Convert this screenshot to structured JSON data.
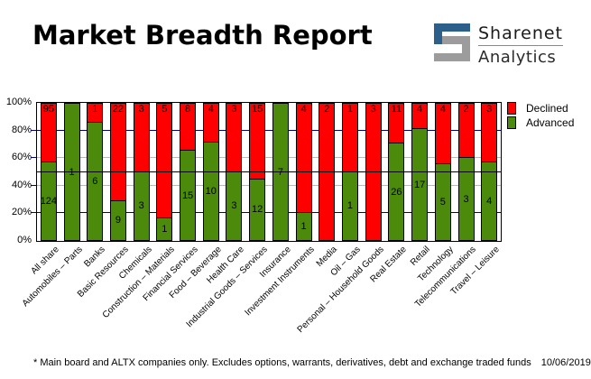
{
  "title": "Market Breadth Report",
  "logo": {
    "line1": "Sharenet",
    "line2": "Analytics"
  },
  "colors": {
    "declined": "#ff0000",
    "advanced": "#4b8a0b",
    "grid_major": "#000080",
    "grid_minor": "#b8b8b8",
    "reference_line": "#000000",
    "logo_blue": "#2d5f8b",
    "logo_gray": "#9c9c9c"
  },
  "chart_data": {
    "type": "bar",
    "stacked": true,
    "percent_stacked": true,
    "title": "Market Breadth Report",
    "xlabel": "",
    "ylabel": "",
    "ylim": [
      0,
      100
    ],
    "legend_position": "top-right-outside",
    "reference_line_percent": 50,
    "categories": [
      "All share",
      "Automobiles – Parts",
      "Banks",
      "Basic Resources",
      "Chemicals",
      "Construction – Materials",
      "Financial Services",
      "Food – Beverage",
      "Health Care",
      "Industrial Goods – Services",
      "Insurance",
      "Investment Instruments",
      "Media",
      "Oil – Gas",
      "Personal – Household Goods",
      "Real Estate",
      "Retail",
      "Technology",
      "Telecommunications",
      "Travel – Leisure"
    ],
    "series": [
      {
        "name": "Declined",
        "color": "#ff0000",
        "values": [
          95,
          0,
          1,
          22,
          3,
          5,
          8,
          4,
          3,
          15,
          0,
          4,
          2,
          1,
          3,
          11,
          4,
          4,
          2,
          3
        ]
      },
      {
        "name": "Advanced",
        "color": "#4b8a0b",
        "values": [
          124,
          1,
          6,
          9,
          3,
          1,
          15,
          10,
          3,
          12,
          7,
          1,
          0,
          1,
          0,
          26,
          17,
          5,
          3,
          4
        ]
      }
    ],
    "y_ticks": [
      {
        "label": "100%",
        "percent": 100
      },
      {
        "label": "80%",
        "percent": 80
      },
      {
        "label": "60%",
        "percent": 60
      },
      {
        "label": "40%",
        "percent": 40
      },
      {
        "label": "20%",
        "percent": 20
      },
      {
        "label": "0%",
        "percent": 0
      }
    ],
    "gridlines": [
      {
        "percent": 80,
        "color": "#000080"
      },
      {
        "percent": 60,
        "color": "#b8b8b8"
      },
      {
        "percent": 40,
        "color": "#b8b8b8"
      },
      {
        "percent": 20,
        "color": "#000080"
      }
    ]
  },
  "footer": {
    "note": "* Main board and ALTX companies only. Excludes options, warrants, derivatives, debt and exchange traded funds",
    "date": "10/06/2019"
  }
}
